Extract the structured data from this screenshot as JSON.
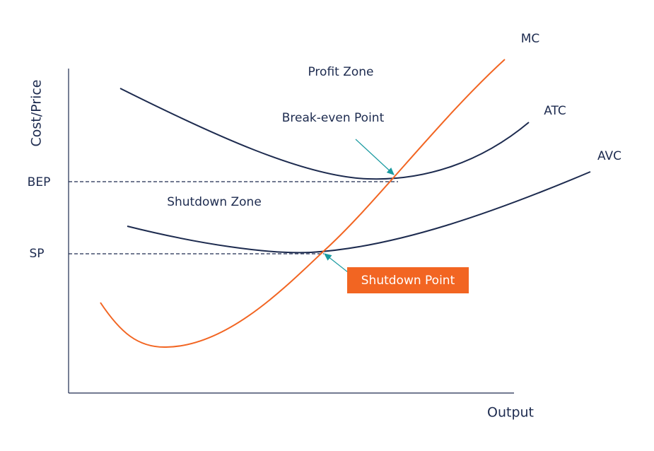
{
  "axes": {
    "y_label": "Cost/Price",
    "x_label": "Output",
    "y_marks": [
      "BEP",
      "SP"
    ]
  },
  "curves": {
    "mc": "MC",
    "atc": "ATC",
    "avc": "AVC"
  },
  "zones": {
    "profit": "Profit Zone",
    "shutdown": "Shutdown Zone"
  },
  "points": {
    "break_even": "Break-even Point",
    "shutdown": "Shutdown Point"
  }
}
